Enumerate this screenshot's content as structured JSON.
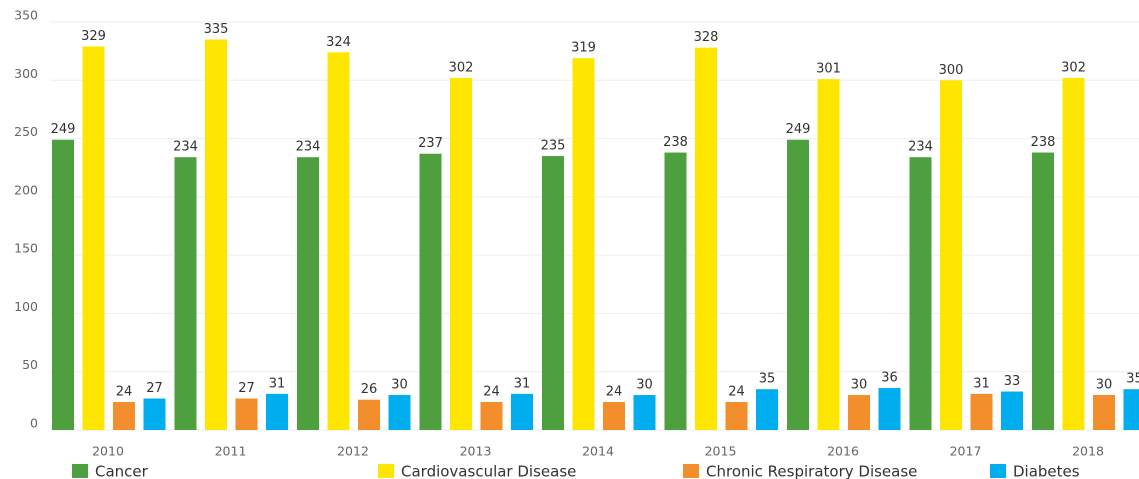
{
  "chart_data": {
    "type": "bar",
    "categories": [
      "2010",
      "2011",
      "2012",
      "2013",
      "2014",
      "2015",
      "2016",
      "2017",
      "2018"
    ],
    "series": [
      {
        "name": "Cancer",
        "color": "#4e9f3d",
        "values": [
          249,
          234,
          234,
          237,
          235,
          238,
          249,
          234,
          238
        ]
      },
      {
        "name": "Cardiovascular Disease",
        "color": "#ffe600",
        "values": [
          329,
          335,
          324,
          302,
          319,
          328,
          301,
          300,
          302
        ]
      },
      {
        "name": "Chronic Respiratory Disease",
        "color": "#f28e2b",
        "values": [
          24,
          27,
          26,
          24,
          24,
          24,
          30,
          31,
          30
        ]
      },
      {
        "name": "Diabetes",
        "color": "#00aeef",
        "values": [
          27,
          31,
          30,
          31,
          30,
          35,
          36,
          33,
          35
        ]
      }
    ],
    "ylim": [
      0,
      350
    ],
    "yticks": [
      0,
      50,
      100,
      150,
      200,
      250,
      300,
      350
    ],
    "grid": true
  }
}
